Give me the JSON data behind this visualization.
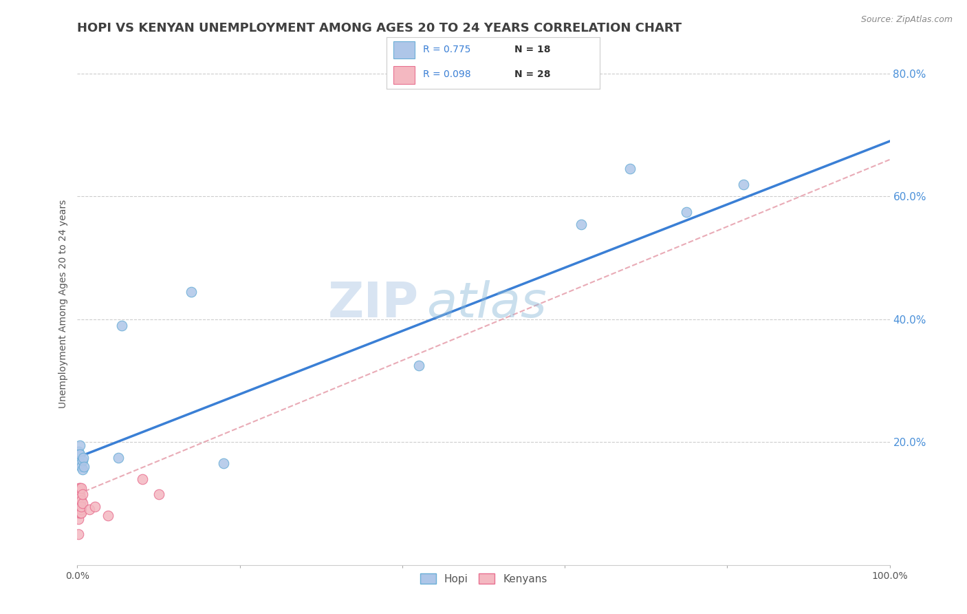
{
  "title": "HOPI VS KENYAN UNEMPLOYMENT AMONG AGES 20 TO 24 YEARS CORRELATION CHART",
  "source": "Source: ZipAtlas.com",
  "ylabel": "Unemployment Among Ages 20 to 24 years",
  "xlim": [
    0.0,
    1.0
  ],
  "ylim": [
    0.0,
    0.85
  ],
  "xticks": [
    0.0,
    0.2,
    0.4,
    0.6,
    0.8,
    1.0
  ],
  "xticklabels": [
    "0.0%",
    "",
    "",
    "",
    "",
    "100.0%"
  ],
  "yticks": [
    0.2,
    0.4,
    0.6,
    0.8
  ],
  "yticklabels": [
    "20.0%",
    "40.0%",
    "60.0%",
    "80.0%"
  ],
  "hopi_color": "#aec6e8",
  "kenyan_color": "#f4b8c1",
  "hopi_edge_color": "#6aaed6",
  "kenyan_edge_color": "#e87090",
  "hopi_line_color": "#3a7fd5",
  "kenyan_line_color": "#e08898",
  "watermark_zip": "ZIP",
  "watermark_atlas": "atlas",
  "R_hopi": "0.775",
  "N_hopi": "18",
  "R_kenyan": "0.098",
  "N_kenyan": "28",
  "hopi_x": [
    0.001,
    0.003,
    0.003,
    0.004,
    0.005,
    0.006,
    0.006,
    0.007,
    0.008,
    0.05,
    0.055,
    0.14,
    0.18,
    0.42,
    0.62,
    0.68,
    0.75,
    0.82
  ],
  "hopi_y": [
    0.185,
    0.195,
    0.18,
    0.165,
    0.16,
    0.17,
    0.155,
    0.175,
    0.16,
    0.175,
    0.39,
    0.445,
    0.165,
    0.325,
    0.555,
    0.645,
    0.575,
    0.62
  ],
  "kenyan_x": [
    0.001,
    0.001,
    0.001,
    0.002,
    0.002,
    0.002,
    0.002,
    0.003,
    0.003,
    0.003,
    0.003,
    0.003,
    0.004,
    0.004,
    0.004,
    0.004,
    0.005,
    0.005,
    0.005,
    0.005,
    0.005,
    0.006,
    0.006,
    0.015,
    0.022,
    0.038,
    0.08,
    0.1
  ],
  "kenyan_y": [
    0.05,
    0.075,
    0.105,
    0.125,
    0.12,
    0.085,
    0.1,
    0.1,
    0.115,
    0.09,
    0.105,
    0.125,
    0.1,
    0.11,
    0.09,
    0.085,
    0.09,
    0.105,
    0.085,
    0.095,
    0.125,
    0.1,
    0.115,
    0.09,
    0.095,
    0.08,
    0.14,
    0.115
  ],
  "marker_size": 110,
  "title_fontsize": 13,
  "axis_label_fontsize": 10,
  "tick_fontsize": 10,
  "legend_fontsize": 11,
  "background_color": "#ffffff",
  "grid_color": "#cccccc",
  "title_color": "#404040",
  "tick_color": "#4a90d9"
}
